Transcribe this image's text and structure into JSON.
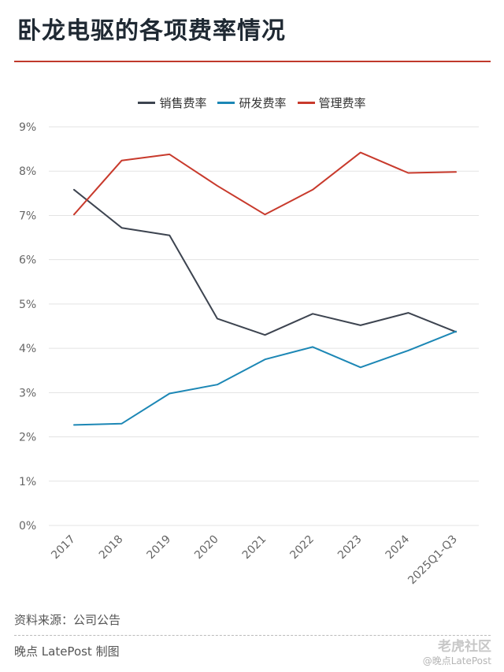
{
  "title": "卧龙电驱的各项费率情况",
  "source": "资料来源：公司公告",
  "credit": "晚点 LatePost 制图",
  "watermark": {
    "brand": "老虎社区",
    "user": "@晚点LatePost"
  },
  "chart_data": {
    "type": "line",
    "categories": [
      "2017",
      "2018",
      "2019",
      "2020",
      "2021",
      "2022",
      "2023",
      "2024",
      "2025Q1-Q3"
    ],
    "y_tick_labels": [
      "0%",
      "1%",
      "2%",
      "3%",
      "4%",
      "5%",
      "6%",
      "7%",
      "8%",
      "9%"
    ],
    "ylim": [
      0,
      9
    ],
    "y_unit": "%",
    "grid": true,
    "legend_position": "top",
    "series": [
      {
        "name": "销售费率",
        "color": "#3d4450",
        "values": [
          7.58,
          6.72,
          6.55,
          4.67,
          4.3,
          4.78,
          4.52,
          4.8,
          4.37
        ]
      },
      {
        "name": "研发费率",
        "color": "#1c87b5",
        "values": [
          2.27,
          2.3,
          2.98,
          3.18,
          3.75,
          4.03,
          3.57,
          3.95,
          4.38
        ]
      },
      {
        "name": "管理费率",
        "color": "#c83a2c",
        "values": [
          7.02,
          8.24,
          8.38,
          7.67,
          7.02,
          7.58,
          8.42,
          7.96,
          7.98
        ]
      }
    ]
  }
}
